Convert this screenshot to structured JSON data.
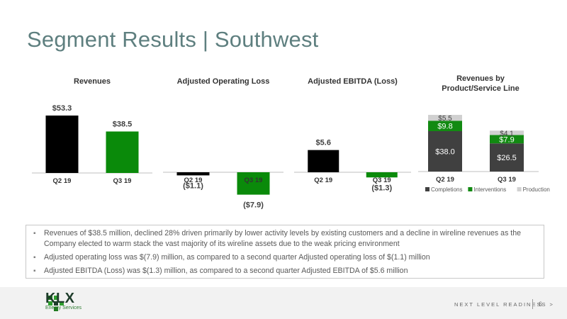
{
  "page": {
    "title": "Segment Results | Southwest",
    "page_number": "6",
    "tagline": "NEXT LEVEL READINESS >",
    "logo_text": "KLX",
    "logo_subtext": "Energy Services"
  },
  "colors": {
    "black": "#000000",
    "green": "#0a8a0a",
    "completions": "#404040",
    "interventions": "#128a12",
    "production": "#d0d0d0",
    "axis": "#bfbfbf"
  },
  "chart_data": [
    {
      "type": "bar",
      "title": "Revenues",
      "categories": [
        "Q2 19",
        "Q3 19"
      ],
      "values": [
        53.3,
        38.5
      ],
      "labels": [
        "$53.3",
        "$38.5"
      ],
      "colors": [
        "#000000",
        "#0a8a0a"
      ]
    },
    {
      "type": "bar",
      "title": "Adjusted Operating Loss",
      "categories": [
        "Q2 19",
        "Q3 19"
      ],
      "values": [
        -1.1,
        -7.9
      ],
      "labels": [
        "($1.1)",
        "($7.9)"
      ],
      "colors": [
        "#000000",
        "#0a8a0a"
      ]
    },
    {
      "type": "bar",
      "title": "Adjusted EBITDA (Loss)",
      "categories": [
        "Q2 19",
        "Q3 19"
      ],
      "values": [
        5.6,
        -1.3
      ],
      "labels": [
        "$5.6",
        "($1.3)"
      ],
      "colors": [
        "#000000",
        "#0a8a0a"
      ]
    },
    {
      "type": "bar",
      "stacked": true,
      "title": "Revenues by Product/Service Line",
      "categories": [
        "Q2 19",
        "Q3 19"
      ],
      "series": [
        {
          "name": "Completions",
          "values": [
            38.0,
            26.5
          ],
          "labels": [
            "$38.0",
            "$26.5"
          ],
          "color": "#404040"
        },
        {
          "name": "Interventions",
          "values": [
            9.8,
            7.9
          ],
          "labels": [
            "$9.8",
            "$7.9"
          ],
          "color": "#128a12"
        },
        {
          "name": "Production",
          "values": [
            5.5,
            4.1
          ],
          "labels": [
            "$5.5",
            "$4.1"
          ],
          "color": "#d0d0d0"
        }
      ],
      "legend": "bottom"
    }
  ],
  "bullets": [
    "Revenues of $38.5 million, declined 28% driven primarily by lower activity levels by existing customers and a decline in wireline revenues as the Company elected to warm stack the vast majority of its wireline assets due to the weak pricing environment",
    "Adjusted operating loss was $(7.9) million, as compared to a second quarter Adjusted operating loss of $(1.1) million",
    "Adjusted EBITDA (Loss) was $(1.3) million, as compared to a second quarter Adjusted EBITDA of $5.6 million"
  ]
}
